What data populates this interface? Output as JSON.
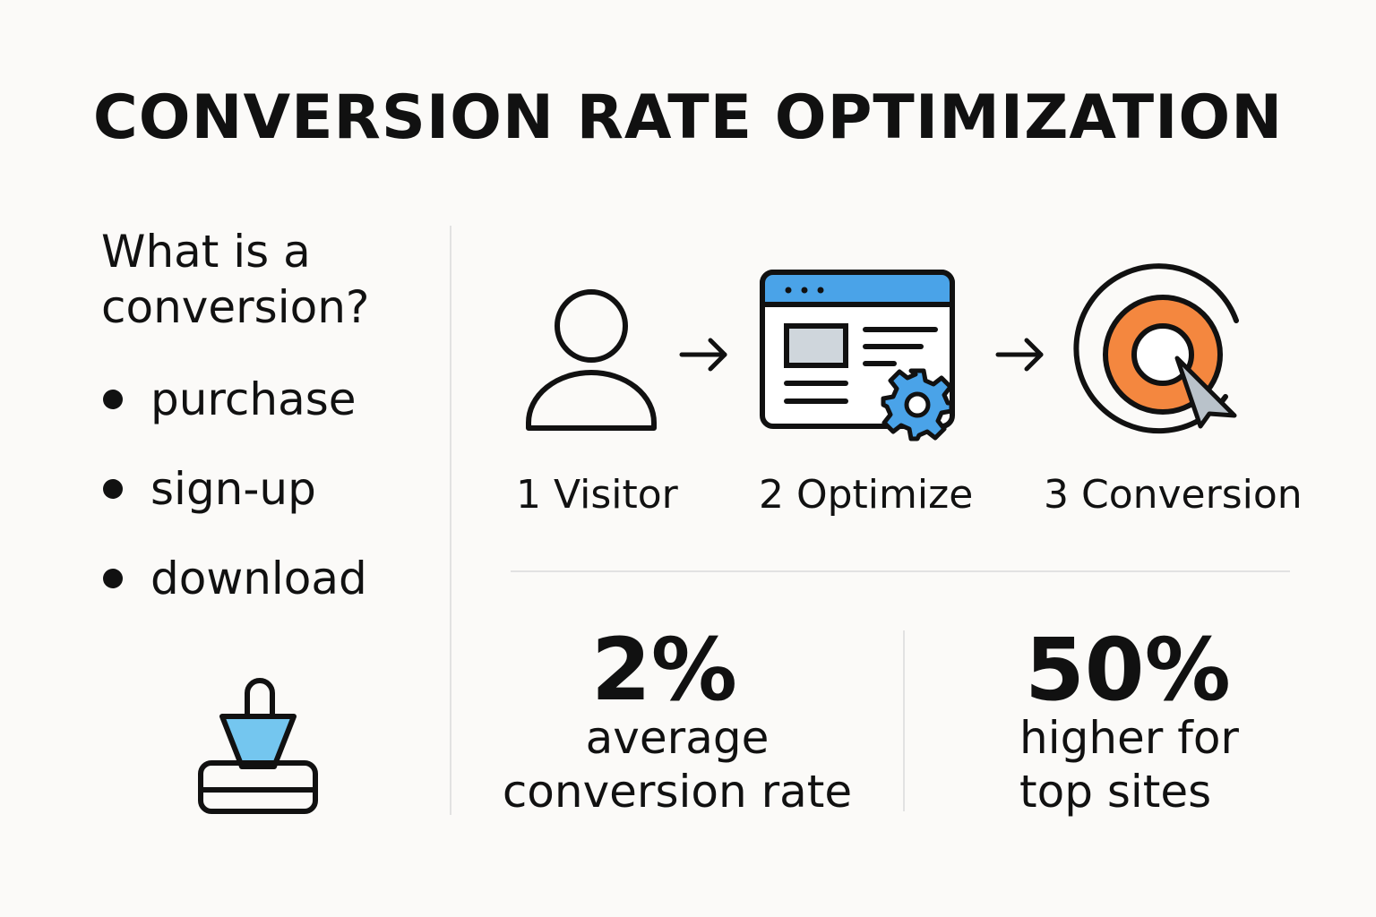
{
  "title": "CONVERSION RATE OPTIMIZATION",
  "sidebar": {
    "question": "What is a conversion?",
    "bullets": [
      "purchase",
      "sign-up",
      "download"
    ],
    "icon": "shopping-basket-icon"
  },
  "flow": {
    "steps": [
      {
        "label": "1 Visitor",
        "icon": "user-icon"
      },
      {
        "label": "2 Optimize",
        "icon": "browser-settings-icon"
      },
      {
        "label": "3 Conversion",
        "icon": "target-cursor-icon"
      }
    ],
    "arrow_icon": "arrow-right-icon"
  },
  "stats": [
    {
      "value": "2%",
      "text_line1": "average",
      "text_line2": "conversion rate"
    },
    {
      "value": "50%",
      "text_line1": "higher for",
      "text_line2": "top sites"
    }
  ],
  "colors": {
    "accent_blue": "#4aa3e8",
    "basket_fill": "#74c6ef",
    "target_orange": "#f4873f",
    "text": "#111111"
  }
}
